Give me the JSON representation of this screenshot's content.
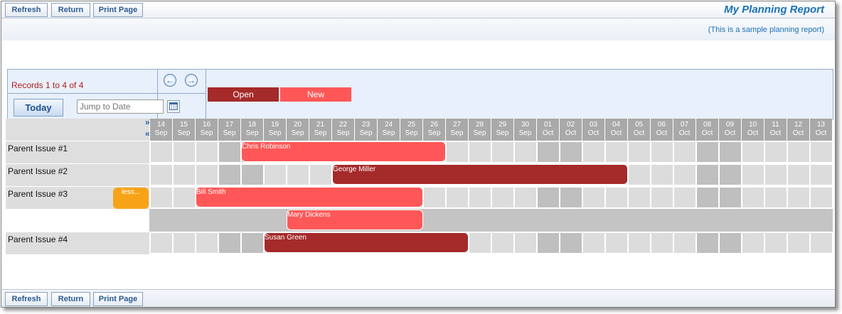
{
  "toolbar": {
    "refresh": "Refresh",
    "return": "Return",
    "print": "Print Page"
  },
  "page": {
    "title": "My Planning Report",
    "subtitle": "(This is a sample planning report)"
  },
  "controls": {
    "records": "Records 1 to 4 of 4",
    "prev_icon": "arrow-left-icon",
    "next_icon": "arrow-right-icon",
    "today": "Today",
    "jump_placeholder": "Jump to Date",
    "calendar_icon": "calendar-icon"
  },
  "legend": [
    {
      "label": "Open",
      "color": "#a52a2a"
    },
    {
      "label": "New",
      "color": "#ff5757"
    }
  ],
  "expand": {
    "expand_all": "»",
    "collapse_all": "«"
  },
  "days": [
    {
      "d": "14",
      "m": "Sep"
    },
    {
      "d": "15",
      "m": "Sep"
    },
    {
      "d": "16",
      "m": "Sep"
    },
    {
      "d": "17",
      "m": "Sep"
    },
    {
      "d": "18",
      "m": "Sep"
    },
    {
      "d": "19",
      "m": "Sep"
    },
    {
      "d": "20",
      "m": "Sep"
    },
    {
      "d": "21",
      "m": "Sep"
    },
    {
      "d": "22",
      "m": "Sep"
    },
    {
      "d": "23",
      "m": "Sep"
    },
    {
      "d": "24",
      "m": "Sep"
    },
    {
      "d": "25",
      "m": "Sep"
    },
    {
      "d": "26",
      "m": "Sep"
    },
    {
      "d": "27",
      "m": "Sep"
    },
    {
      "d": "28",
      "m": "Sep"
    },
    {
      "d": "29",
      "m": "Sep"
    },
    {
      "d": "30",
      "m": "Sep"
    },
    {
      "d": "01",
      "m": "Oct"
    },
    {
      "d": "02",
      "m": "Oct"
    },
    {
      "d": "03",
      "m": "Oct"
    },
    {
      "d": "04",
      "m": "Oct"
    },
    {
      "d": "05",
      "m": "Oct"
    },
    {
      "d": "06",
      "m": "Oct"
    },
    {
      "d": "07",
      "m": "Oct"
    },
    {
      "d": "08",
      "m": "Oct"
    },
    {
      "d": "09",
      "m": "Oct"
    },
    {
      "d": "10",
      "m": "Oct"
    },
    {
      "d": "11",
      "m": "Oct"
    },
    {
      "d": "12",
      "m": "Oct"
    },
    {
      "d": "13",
      "m": "Oct"
    }
  ],
  "weekend_days": [
    "17",
    "18",
    "01",
    "02",
    "08",
    "09"
  ],
  "rows": [
    {
      "label": "Parent Issue #1",
      "bars": [
        {
          "name": "Chris Robinson",
          "status": "New",
          "start": "18 Sep",
          "end": "26 Sep"
        }
      ]
    },
    {
      "label": "Parent Issue #2",
      "bars": [
        {
          "name": "George Miller",
          "status": "Open",
          "start": "22 Sep",
          "end": "04 Oct"
        }
      ]
    },
    {
      "label": "Parent Issue #3",
      "less": "less...",
      "bars": [
        {
          "name": "Bill Smith",
          "status": "New",
          "start": "16 Sep",
          "end": "25 Sep"
        }
      ]
    },
    {
      "label": "",
      "sub": true,
      "bars": [
        {
          "name": "Mary Dickens",
          "status": "New",
          "start": "20 Sep",
          "end": "25 Sep"
        }
      ]
    },
    {
      "label": "Parent Issue #4",
      "bars": [
        {
          "name": "Susan Green",
          "status": "Open",
          "start": "19 Sep",
          "end": "27 Sep"
        }
      ]
    }
  ]
}
